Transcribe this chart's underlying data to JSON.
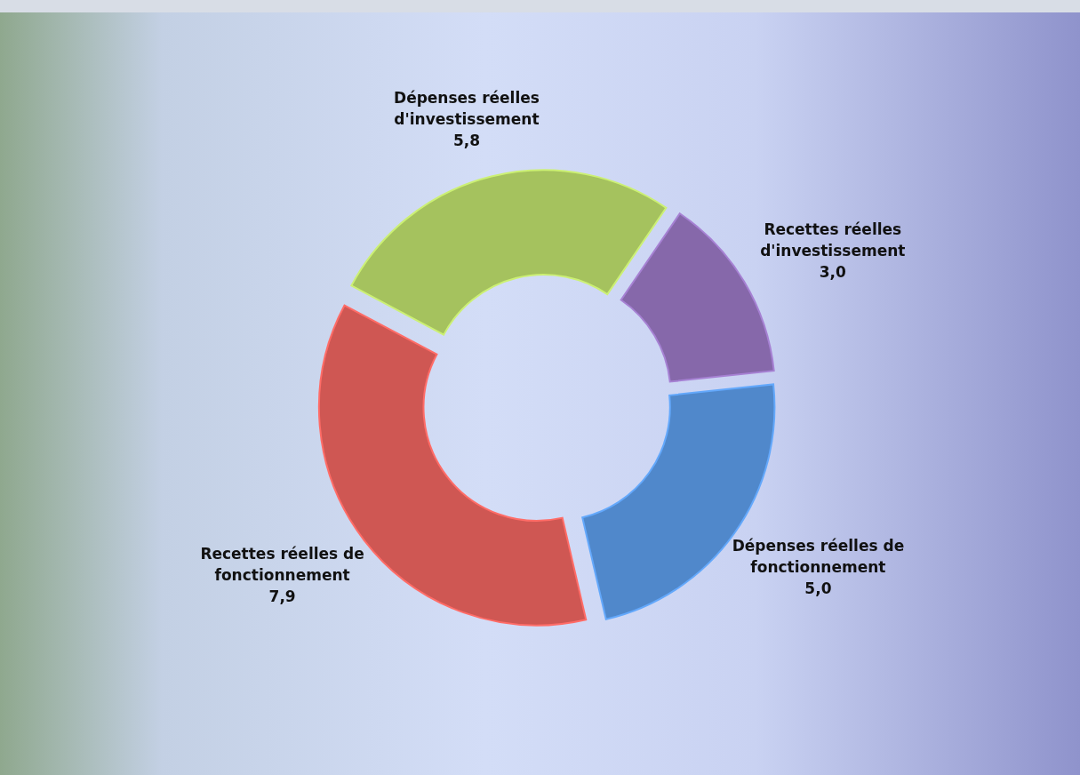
{
  "chart_data": {
    "type": "donut",
    "categories": [
      "Dépenses réelles d'investissement",
      "Recettes réelles d'investissement",
      "Dépenses réelles de fonctionnement",
      "Recettes réelles de fonctionnement"
    ],
    "values": [
      5.8,
      3.0,
      5.0,
      7.9
    ],
    "value_labels": [
      "5,8",
      "3,0",
      "5,0",
      "7,9"
    ],
    "colors": [
      "#a5c25e",
      "#8668aa",
      "#5088cb",
      "#cf5753"
    ]
  }
}
